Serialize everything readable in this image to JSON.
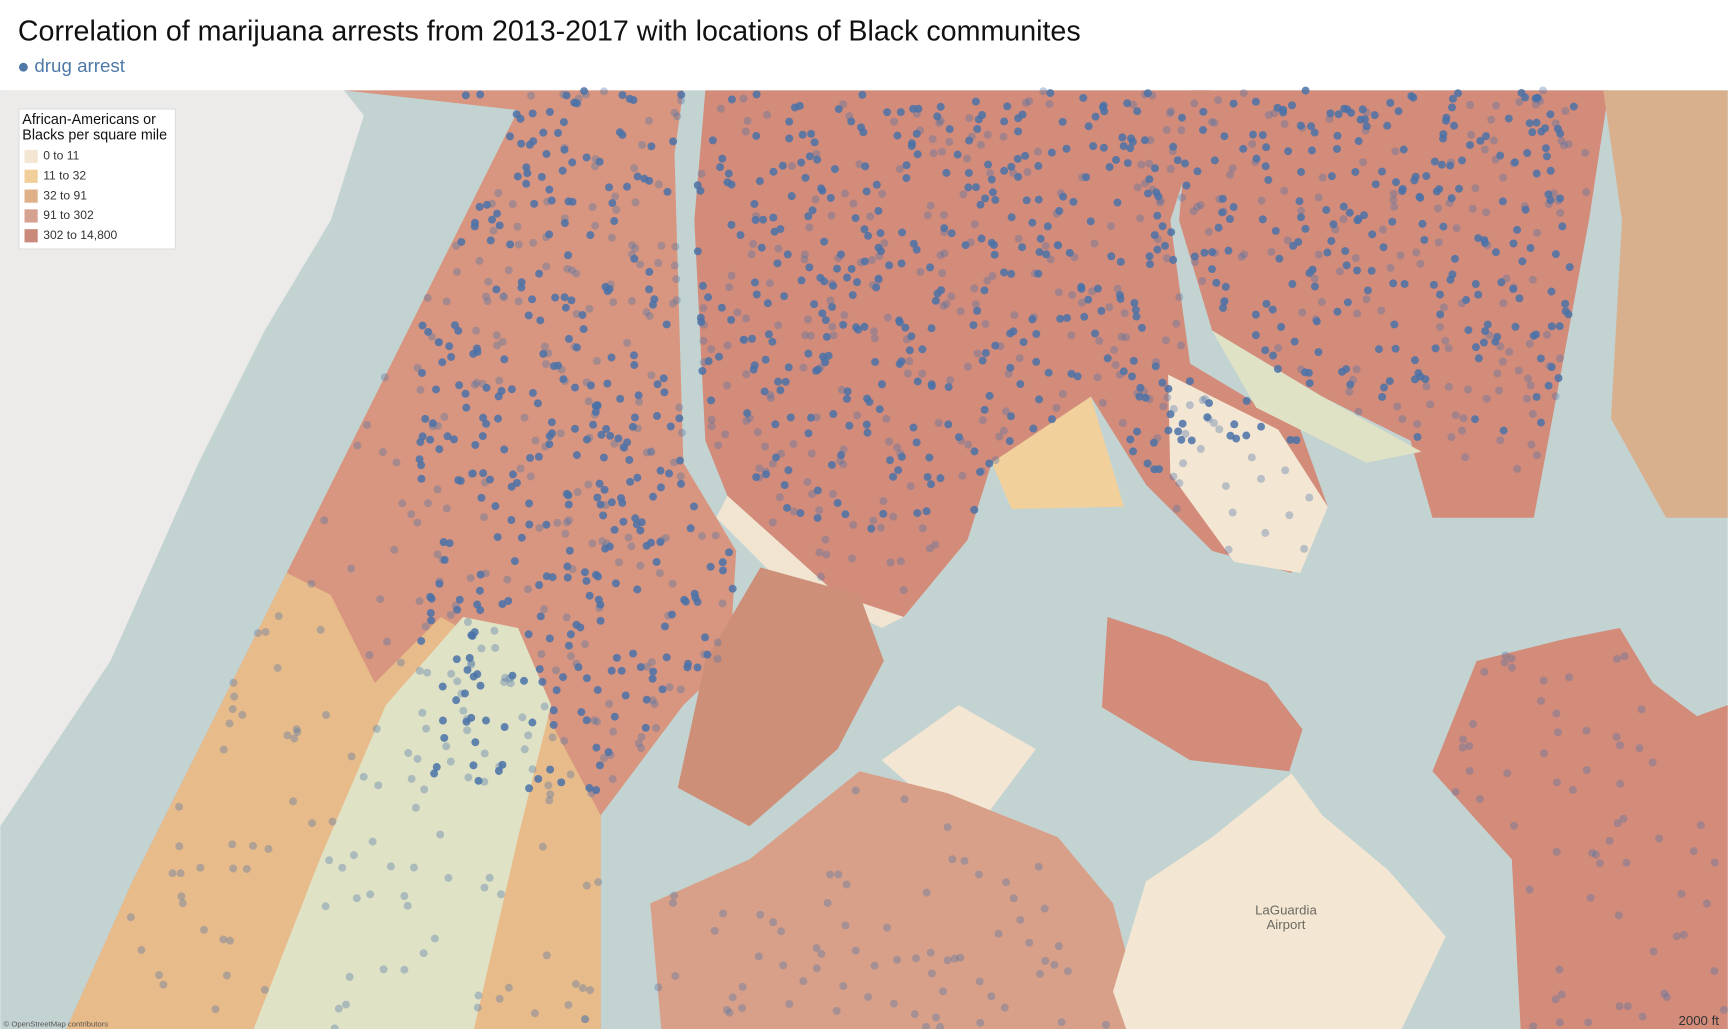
{
  "header": {
    "title": "Correlation of marijuana arrests from 2013-2017 with locations of Black communites",
    "subtitle": "drug arrest"
  },
  "legend": {
    "title_lines": [
      "African-Americans or",
      "Blacks per square mile"
    ],
    "items": [
      {
        "label": "0 to 11",
        "color": "#f3e6d3"
      },
      {
        "label": "11 to 32",
        "color": "#f0cf9a"
      },
      {
        "label": "32 to 91",
        "color": "#e0b189"
      },
      {
        "label": "91 to 302",
        "color": "#d5a291"
      },
      {
        "label": "302 to 14,800",
        "color": "#c98a7c"
      }
    ]
  },
  "map": {
    "airport_lines": [
      "LaGuardia",
      "Airport"
    ],
    "scale": "2000 ft",
    "attribution": "© OpenStreetMap contributors"
  }
}
